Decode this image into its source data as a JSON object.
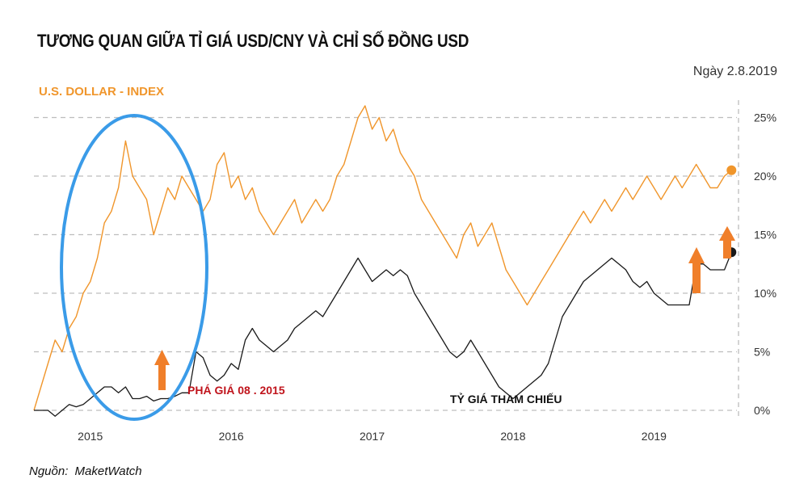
{
  "header": {
    "title": "TƯƠNG QUAN GIỮA TỈ GIÁ USD/CNY VÀ CHỈ SỐ ĐỒNG USD",
    "date": "Ngày 2.8.2019",
    "source_label": "Nguồn:",
    "source_name": "MaketWatch"
  },
  "colors": {
    "usd": "#f0962c",
    "cny": "#1a1a1a",
    "ellipse": "#3a9be8",
    "arrow": "#f07f2a",
    "red": "#c0141c"
  },
  "chart_data": {
    "type": "line",
    "title": "TƯƠNG QUAN GIỮA TỈ GIÁ USD/CNY VÀ CHỈ SỐ ĐỒNG USD",
    "x_unit": "year",
    "x_range": [
      2014.6,
      2019.6
    ],
    "y_range": [
      0,
      27
    ],
    "y_ticks": [
      0,
      5,
      10,
      15,
      20,
      25
    ],
    "y_tick_labels": [
      "0%",
      "5%",
      "10%",
      "15%",
      "20%",
      "25%"
    ],
    "x_ticks": [
      2015,
      2016,
      2017,
      2018,
      2019
    ],
    "x_tick_labels": [
      "2015",
      "2016",
      "2017",
      "2018",
      "2019"
    ],
    "grid": true,
    "series": [
      {
        "name": "U.S. DOLLAR - INDEX",
        "color": "#f0962c",
        "x": [
          2014.6,
          2014.65,
          2014.7,
          2014.75,
          2014.8,
          2014.85,
          2014.9,
          2014.95,
          2015.0,
          2015.05,
          2015.1,
          2015.15,
          2015.2,
          2015.25,
          2015.3,
          2015.35,
          2015.4,
          2015.45,
          2015.5,
          2015.55,
          2015.6,
          2015.65,
          2015.7,
          2015.75,
          2015.8,
          2015.85,
          2015.9,
          2015.95,
          2016.0,
          2016.05,
          2016.1,
          2016.15,
          2016.2,
          2016.25,
          2016.3,
          2016.35,
          2016.4,
          2016.45,
          2016.5,
          2016.55,
          2016.6,
          2016.65,
          2016.7,
          2016.75,
          2016.8,
          2016.85,
          2016.9,
          2016.95,
          2017.0,
          2017.05,
          2017.1,
          2017.15,
          2017.2,
          2017.25,
          2017.3,
          2017.35,
          2017.4,
          2017.45,
          2017.5,
          2017.55,
          2017.6,
          2017.65,
          2017.7,
          2017.75,
          2017.8,
          2017.85,
          2017.9,
          2017.95,
          2018.0,
          2018.05,
          2018.1,
          2018.15,
          2018.2,
          2018.25,
          2018.3,
          2018.35,
          2018.4,
          2018.45,
          2018.5,
          2018.55,
          2018.6,
          2018.65,
          2018.7,
          2018.75,
          2018.8,
          2018.85,
          2018.9,
          2018.95,
          2019.0,
          2019.05,
          2019.1,
          2019.15,
          2019.2,
          2019.25,
          2019.3,
          2019.35,
          2019.4,
          2019.45,
          2019.5,
          2019.55
        ],
        "values": [
          0,
          2,
          4,
          6,
          5,
          7,
          8,
          10,
          11,
          13,
          16,
          17,
          19,
          23,
          20,
          19,
          18,
          15,
          17,
          19,
          18,
          20,
          19,
          18,
          17,
          18,
          21,
          22,
          19,
          20,
          18,
          19,
          17,
          16,
          15,
          16,
          17,
          18,
          16,
          17,
          18,
          17,
          18,
          20,
          21,
          23,
          25,
          26,
          24,
          25,
          23,
          24,
          22,
          21,
          20,
          18,
          17,
          16,
          15,
          14,
          13,
          15,
          16,
          14,
          15,
          16,
          14,
          12,
          11,
          10,
          9,
          10,
          11,
          12,
          13,
          14,
          15,
          16,
          17,
          16,
          17,
          18,
          17,
          18,
          19,
          18,
          19,
          20,
          19,
          18,
          19,
          20,
          19,
          20,
          21,
          20,
          19,
          19,
          20,
          20.5
        ]
      },
      {
        "name": "TỶ GIÁ THAM CHIẾU",
        "color": "#1a1a1a",
        "x": [
          2014.6,
          2014.65,
          2014.7,
          2014.75,
          2014.8,
          2014.85,
          2014.9,
          2014.95,
          2015.0,
          2015.05,
          2015.1,
          2015.15,
          2015.2,
          2015.25,
          2015.3,
          2015.35,
          2015.4,
          2015.45,
          2015.5,
          2015.55,
          2015.6,
          2015.65,
          2015.7,
          2015.75,
          2015.8,
          2015.85,
          2015.9,
          2015.95,
          2016.0,
          2016.05,
          2016.1,
          2016.15,
          2016.2,
          2016.25,
          2016.3,
          2016.35,
          2016.4,
          2016.45,
          2016.5,
          2016.55,
          2016.6,
          2016.65,
          2016.7,
          2016.75,
          2016.8,
          2016.85,
          2016.9,
          2016.95,
          2017.0,
          2017.05,
          2017.1,
          2017.15,
          2017.2,
          2017.25,
          2017.3,
          2017.35,
          2017.4,
          2017.45,
          2017.5,
          2017.55,
          2017.6,
          2017.65,
          2017.7,
          2017.75,
          2017.8,
          2017.85,
          2017.9,
          2017.95,
          2018.0,
          2018.05,
          2018.1,
          2018.15,
          2018.2,
          2018.25,
          2018.3,
          2018.35,
          2018.4,
          2018.45,
          2018.5,
          2018.55,
          2018.6,
          2018.65,
          2018.7,
          2018.75,
          2018.8,
          2018.85,
          2018.9,
          2018.95,
          2019.0,
          2019.05,
          2019.1,
          2019.15,
          2019.2,
          2019.25,
          2019.3,
          2019.35,
          2019.4,
          2019.45,
          2019.5,
          2019.55
        ],
        "values": [
          0,
          0,
          0,
          -0.5,
          0,
          0.5,
          0.3,
          0.5,
          1,
          1.5,
          2,
          2,
          1.5,
          2,
          1,
          1,
          1.2,
          0.8,
          1,
          1,
          1.2,
          1.5,
          1.5,
          5,
          4.5,
          3,
          2.5,
          3,
          4,
          3.5,
          6,
          7,
          6,
          5.5,
          5,
          5.5,
          6,
          7,
          7.5,
          8,
          8.5,
          8,
          9,
          10,
          11,
          12,
          13,
          12,
          11,
          11.5,
          12,
          11.5,
          12,
          11.5,
          10,
          9,
          8,
          7,
          6,
          5,
          4.5,
          5,
          6,
          5,
          4,
          3,
          2,
          1.5,
          1,
          1.5,
          2,
          2.5,
          3,
          4,
          6,
          8,
          9,
          10,
          11,
          11.5,
          12,
          12.5,
          13,
          12.5,
          12,
          11,
          10.5,
          11,
          10,
          9.5,
          9,
          9,
          9,
          9,
          12.5,
          12.5,
          12,
          12,
          12,
          13.5
        ]
      }
    ],
    "annotations": [
      {
        "text": "PHÁ GIÁ 08 . 2015"
      },
      {
        "text": "TỶ GIÁ THAM CHIẾU"
      }
    ]
  }
}
